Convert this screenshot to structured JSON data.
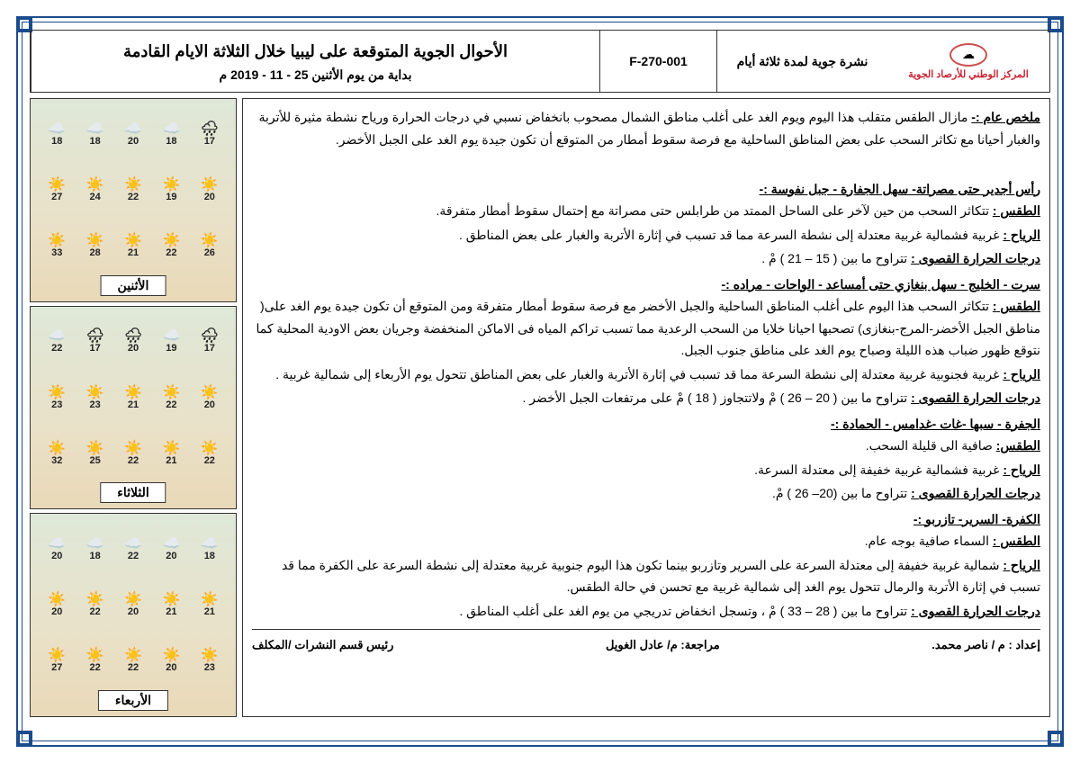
{
  "header": {
    "org_name": "المركز الوطني للأرصاد الجوية",
    "bulletin_type": "نشرة جوية لمدة ثلاثة أيام",
    "code": "F-270-001",
    "main_title": "الأحوال الجوية المتوقعة على ليبيا خلال الثلاثة الايام القادمة",
    "sub_title": "بداية من يوم الأثنين 25 - 11 - 2019 م"
  },
  "summary": {
    "label": "ملخص عام :-",
    "text": "مازال الطقس متقلب هذا اليوم ويوم الغد على أغلب مناطق الشمال مصحوب بانخفاض نسبي في درجات الحرارة ورياح نشطة مثيرة للأتربة والغبار أحيانا مع تكاثر السحب على بعض المناطق الساحلية مع فرصة سقوط أمطار من المتوقع أن تكون جيدة يوم الغد على الجبل الأخضر."
  },
  "regions": [
    {
      "title": "رأس أجدير حتى مصراتة- سهل الجفارة - جبل نفوسة :-",
      "weather_label": "الطقس :",
      "weather": "تتكاثر السحب من حين لآخر على الساحل الممتد من طرابلس حتى مصراتة مع إحتمال سقوط أمطار متفرقة.",
      "wind_label": "الرياح :",
      "wind": "غربية فشمالية غربية معتدلة إلى نشطة السرعة مما قد تسبب في إثارة الأتربة والغبار على بعض المناطق .",
      "temp_label": "درجات الحرارة القصوى :",
      "temp": "تتراوح ما بين ( 15 – 21 ) مْ ."
    },
    {
      "title": "سرت - الخليج - سهل بنغازي حتى أمساعد - الواحات - مراده :-",
      "weather_label": "الطقس :",
      "weather": "تتكاثر السحب هذا اليوم على أغلب المناطق الساحلية والجبل الأخضر مع فرصة سقوط أمطار متفرقة ومن المتوقع أن تكون جيدة يوم الغد على( مناطق الجبل الأخضر-المرج-بنغازى) تصحبها احيانا خلايا من السحب الرعدية مما تسبب تراكم المياه فى الاماكن المنخفضة وجريان بعض الاودية المحلية كما نتوقع ظهور ضباب هذه الليلة وصباح يوم الغد على مناطق جنوب الجبل.",
      "wind_label": "الرياح :",
      "wind": "غربية فجنوبية غربية معتدلة إلى نشطة السرعة مما قد تسبب في إثارة الأتربة والغبار على بعض المناطق  تتحول يوم الأربعاء إلى شمالية غربية .",
      "temp_label": "درجات الحرارة القصوى :",
      "temp": "تتراوح ما بين ( 20 – 26 ) مْ ولاتتجاوز ( 18 ) مْ على مرتفعات الجبل الأخضر ."
    },
    {
      "title": "الجفرة - سبها -غات -غدامس - الحمادة :-",
      "weather_label": "الطقس:",
      "weather": "صافية الى قليلة السحب.",
      "wind_label": "الرياح :",
      "wind": "غربية فشمالية غربية خفيفة إلى معتدلة السرعة.",
      "temp_label": "درجات الحرارة القصوى :",
      "temp": "تتراوح ما بين (20– 26 ) مْ."
    },
    {
      "title": "الكفرة- السرير- تازربو :-",
      "weather_label": "الطقس :",
      "weather": "السماء صافية بوجه عام.",
      "wind_label": "الرياح :",
      "wind": "شمالية غربية خفيفة إلى معتدلة السرعة على السرير وتازربو بينما تكون هذا اليوم جنوبية غربية معتدلة إلى نشطة السرعة على الكفرة مما قد تسبب في إثارة الأتربة والرمال تتحول يوم الغد إلى شمالية غربية مع تحسن في حالة الطقس.",
      "temp_label": "درجات الحرارة القصوى :",
      "temp": "تتراوح ما بين ( 28 – 33 ) مْ ، وتسجل انخفاض تدريجي  من يوم الغد على أغلب المناطق ."
    }
  ],
  "maps": [
    {
      "day": "الأثنين",
      "points": [
        {
          "ic": "🌧",
          "t": "17"
        },
        {
          "ic": "☁️",
          "t": "18"
        },
        {
          "ic": "☁️",
          "t": "20"
        },
        {
          "ic": "☁️",
          "t": "18"
        },
        {
          "ic": "☁️",
          "t": "18"
        },
        {
          "ic": "☀️",
          "t": "20"
        },
        {
          "ic": "☀️",
          "t": "19"
        },
        {
          "ic": "☀️",
          "t": "22"
        },
        {
          "ic": "☀️",
          "t": "24"
        },
        {
          "ic": "☀️",
          "t": "27"
        },
        {
          "ic": "☀️",
          "t": "26"
        },
        {
          "ic": "☀️",
          "t": "22"
        },
        {
          "ic": "☀️",
          "t": "21"
        },
        {
          "ic": "☀️",
          "t": "28"
        },
        {
          "ic": "☀️",
          "t": "33"
        }
      ]
    },
    {
      "day": "الثلاثاء",
      "points": [
        {
          "ic": "🌧",
          "t": "17"
        },
        {
          "ic": "☁️",
          "t": "19"
        },
        {
          "ic": "🌧",
          "t": "20"
        },
        {
          "ic": "🌧",
          "t": "17"
        },
        {
          "ic": "☁️",
          "t": "22"
        },
        {
          "ic": "☀️",
          "t": "20"
        },
        {
          "ic": "☀️",
          "t": "22"
        },
        {
          "ic": "☀️",
          "t": "21"
        },
        {
          "ic": "☀️",
          "t": "23"
        },
        {
          "ic": "☀️",
          "t": "23"
        },
        {
          "ic": "☀️",
          "t": "22"
        },
        {
          "ic": "☀️",
          "t": "21"
        },
        {
          "ic": "☀️",
          "t": "22"
        },
        {
          "ic": "☀️",
          "t": "25"
        },
        {
          "ic": "☀️",
          "t": "32"
        }
      ]
    },
    {
      "day": "الأربعاء",
      "points": [
        {
          "ic": "☁️",
          "t": "18"
        },
        {
          "ic": "☁️",
          "t": "20"
        },
        {
          "ic": "☁️",
          "t": "22"
        },
        {
          "ic": "☁️",
          "t": "18"
        },
        {
          "ic": "☁️",
          "t": "20"
        },
        {
          "ic": "☀️",
          "t": "21"
        },
        {
          "ic": "☀️",
          "t": "21"
        },
        {
          "ic": "☀️",
          "t": "20"
        },
        {
          "ic": "☀️",
          "t": "22"
        },
        {
          "ic": "☀️",
          "t": "20"
        },
        {
          "ic": "☀️",
          "t": "23"
        },
        {
          "ic": "☀️",
          "t": "20"
        },
        {
          "ic": "☀️",
          "t": "22"
        },
        {
          "ic": "☀️",
          "t": "22"
        },
        {
          "ic": "☀️",
          "t": "27"
        }
      ]
    }
  ],
  "footer": {
    "prepared": "إعداد : م / ناصر محمد.",
    "reviewed": "مراجعة: م/ عادل الغويل",
    "head": "رئيس قسم النشرات /المكلف"
  },
  "colors": {
    "frame": "#1a4b8c",
    "org": "#c23b3b",
    "map_top": "#dfe8d8",
    "map_bottom": "#e9d9b8"
  }
}
